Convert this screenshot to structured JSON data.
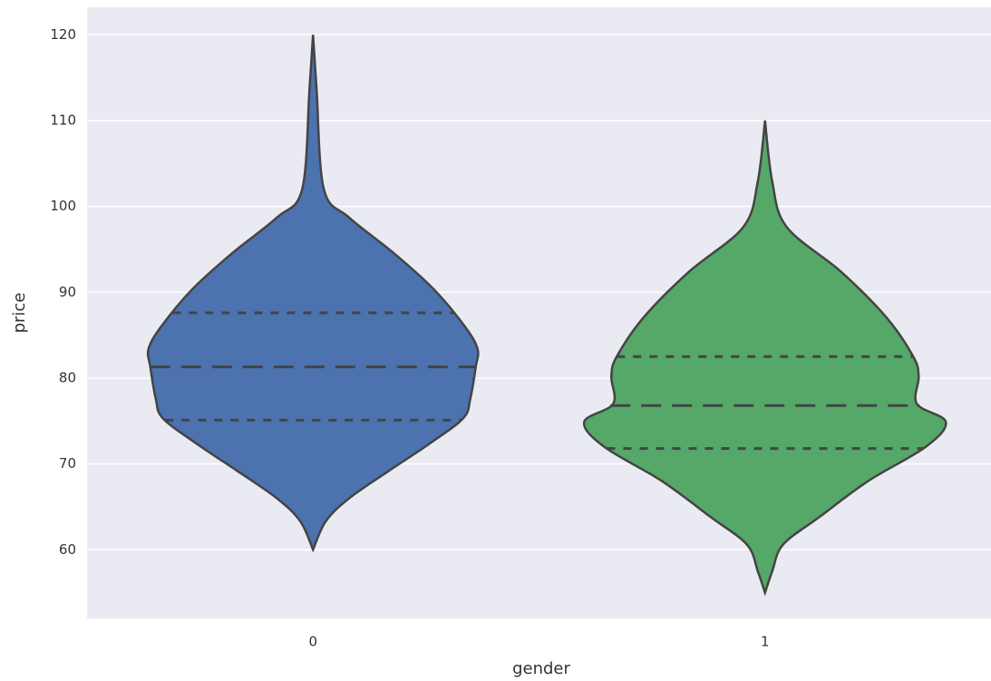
{
  "chart_data": {
    "type": "violin",
    "x_label": "gender",
    "y_label": "price",
    "categories": [
      "0",
      "1"
    ],
    "ylim": [
      52,
      123.2
    ],
    "yticks": [
      60,
      70,
      80,
      90,
      100,
      110,
      120
    ],
    "grid": true,
    "series": [
      {
        "name": "0",
        "color": "#4c72b0",
        "profile_y": [
          120,
          113.5,
          102,
          98.7,
          94.5,
          90.3,
          86,
          83.4,
          81.3,
          77.6,
          75.3,
          72.3,
          69.2,
          66,
          63.3,
          60
        ],
        "widths": [
          0,
          0.02,
          0.06,
          0.2,
          0.45,
          0.67,
          0.84,
          0.91,
          0.9,
          0.87,
          0.83,
          0.64,
          0.42,
          0.2,
          0.07,
          0
        ],
        "quartiles": [
          75.1,
          81.3,
          87.6
        ]
      },
      {
        "name": "1",
        "color": "#55a868",
        "profile_y": [
          110,
          102.9,
          97.6,
          92.4,
          87.1,
          82.5,
          80.2,
          77,
          74.9,
          72,
          68,
          63.8,
          60.6,
          57.5,
          55
        ],
        "widths": [
          0,
          0.04,
          0.12,
          0.42,
          0.67,
          0.82,
          0.85,
          0.84,
          1.0,
          0.89,
          0.57,
          0.3,
          0.1,
          0.04,
          0
        ],
        "quartiles": [
          71.8,
          76.8,
          82.5
        ]
      }
    ]
  }
}
